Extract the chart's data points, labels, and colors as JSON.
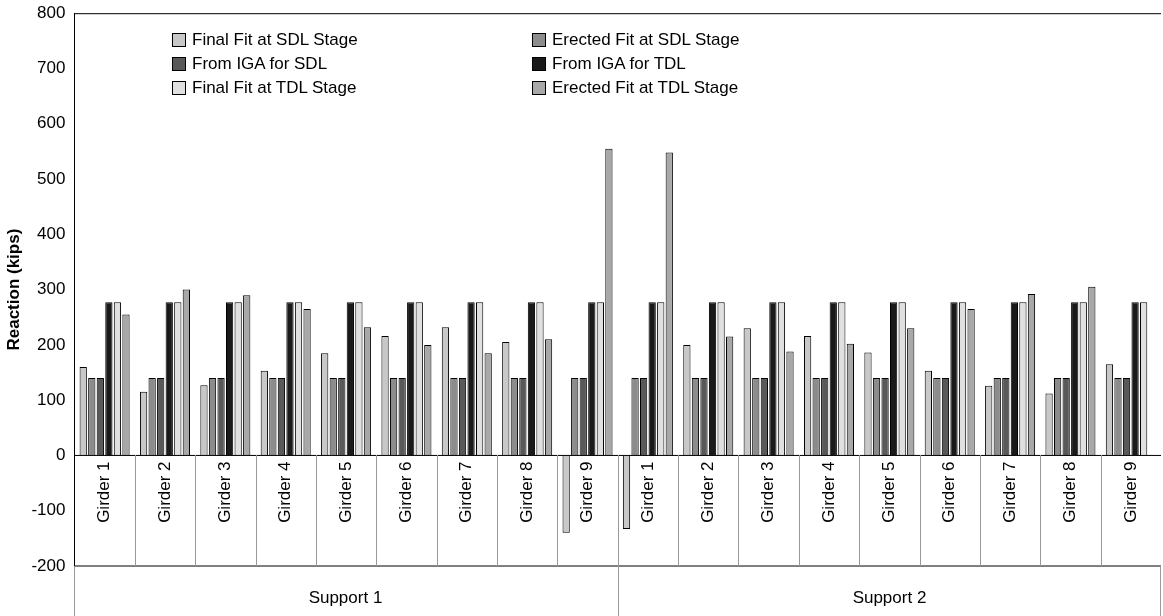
{
  "chart_data": {
    "type": "bar",
    "ylabel": "Reaction (kips)",
    "categories": [
      "Girder 1",
      "Girder 2",
      "Girder 3",
      "Girder 4",
      "Girder 5",
      "Girder 6",
      "Girder 7",
      "Girder 8",
      "Girder 9",
      "Girder 1",
      "Girder 2",
      "Girder 3",
      "Girder 4",
      "Girder 5",
      "Girder 6",
      "Girder 7",
      "Girder 8",
      "Girder 9"
    ],
    "series": [
      {
        "name": "Final Fit at SDL Stage",
        "color": "#c8c8c8",
        "values": [
          160,
          115,
          127,
          153,
          185,
          216,
          232,
          205,
          -140,
          -133,
          200,
          230,
          216,
          186,
          153,
          126,
          112,
          165
        ]
      },
      {
        "name": "Erected Fit at SDL Stage",
        "color": "#8c8c8c",
        "values": [
          140,
          140,
          140,
          140,
          140,
          140,
          140,
          140,
          140,
          140,
          140,
          140,
          140,
          140,
          140,
          140,
          140,
          140
        ]
      },
      {
        "name": "From IGA for SDL",
        "color": "#595959",
        "values": [
          140,
          140,
          140,
          140,
          140,
          140,
          140,
          140,
          140,
          140,
          140,
          140,
          140,
          140,
          140,
          140,
          140,
          140
        ]
      },
      {
        "name": "From IGA for TDL",
        "color": "#1a1a1a",
        "values": [
          277,
          277,
          277,
          277,
          277,
          277,
          277,
          277,
          277,
          277,
          277,
          277,
          277,
          277,
          277,
          277,
          277,
          277
        ]
      },
      {
        "name": "Final Fit at TDL Stage",
        "color": "#e0e0e0",
        "values": [
          277,
          277,
          277,
          277,
          277,
          277,
          277,
          277,
          277,
          277,
          277,
          277,
          277,
          277,
          277,
          277,
          277,
          277
        ]
      },
      {
        "name": "Erected Fit at TDL Stage",
        "color": "#a8a8a8",
        "values": [
          255,
          300,
          290,
          265,
          232,
          200,
          185,
          210,
          555,
          548,
          215,
          188,
          202,
          230,
          265,
          292,
          305,
          null
        ]
      }
    ],
    "ylim": [
      -200,
      800
    ],
    "yticks": [
      -200,
      -100,
      0,
      100,
      200,
      300,
      400,
      500,
      600,
      700,
      800
    ],
    "grid": false,
    "legend": "top left",
    "annotations": [
      "Support 1",
      "Support 2"
    ]
  }
}
